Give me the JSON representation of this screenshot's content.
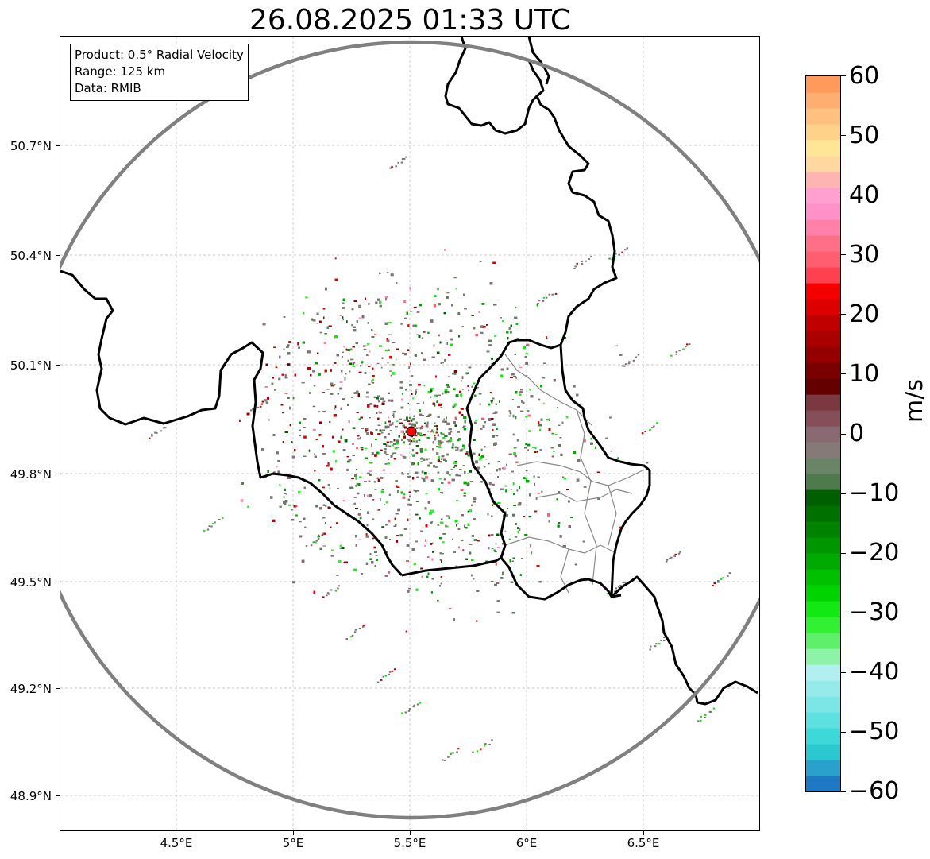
{
  "title": "26.08.2025 01:33 UTC",
  "info_box": {
    "product": "Product: 0.5° Radial Velocity",
    "range": "Range: 125 km",
    "data": "Data: RMIB"
  },
  "axes": {
    "lat_labels": [
      "50.7°N",
      "50.4°N",
      "50.1°N",
      "49.8°N",
      "49.5°N",
      "49.2°N",
      "48.9°N"
    ],
    "lon_labels": [
      "4.5°E",
      "5°E",
      "5.5°E",
      "6°E",
      "6.5°E"
    ]
  },
  "colorbar": {
    "unit": "m/s",
    "min": -60,
    "max": 60,
    "tick_labels": [
      "60",
      "50",
      "40",
      "30",
      "20",
      "10",
      "0",
      "−10",
      "−20",
      "−30",
      "−40",
      "−50",
      "−60"
    ],
    "colors": [
      "#1f78c4",
      "#2aa0cc",
      "#2cc8d0",
      "#3ed8d8",
      "#5ee0e0",
      "#7ce6e6",
      "#96eaea",
      "#b2f0f0",
      "#8ef2a8",
      "#5ef06a",
      "#32f032",
      "#12e812",
      "#00d400",
      "#00c000",
      "#00aa00",
      "#009600",
      "#008400",
      "#007000",
      "#006000",
      "#4e7a4e",
      "#6a8468",
      "#867a78",
      "#8a6a72",
      "#864e58",
      "#7a3840",
      "#640000",
      "#7a0000",
      "#940000",
      "#aa0000",
      "#c00000",
      "#dc0000",
      "#f40000",
      "#ff4050",
      "#ff5e70",
      "#ff7088",
      "#ff80a8",
      "#ff90c8",
      "#ffa0d0",
      "#ffb4b4",
      "#ffd8a0",
      "#ffe696",
      "#ffd28a",
      "#ffc080",
      "#ffae72",
      "#ff9a5a"
    ]
  },
  "radar_site_color": "#ff0000",
  "range_ring_color": "#808080"
}
